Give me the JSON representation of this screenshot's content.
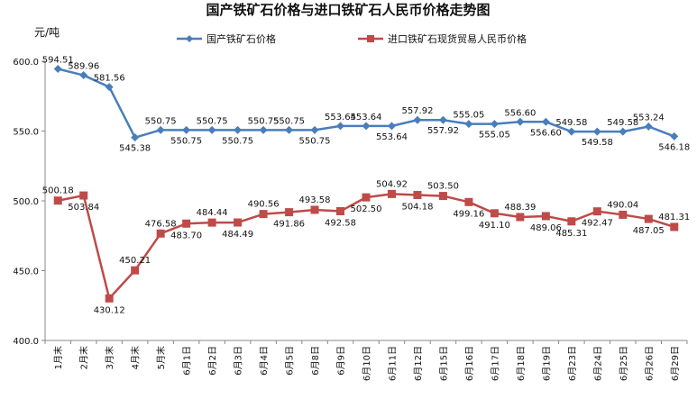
{
  "chart_data": {
    "type": "line",
    "title": "国产铁矿石价格与进口铁矿石人民币价格走势图",
    "ylabel": "元/吨",
    "ylim": [
      400,
      600
    ],
    "yticks": [
      "400.0",
      "450.0",
      "500.0",
      "550.0",
      "600.0"
    ],
    "grid": false,
    "legend_position": "top",
    "categories": [
      "1月末",
      "2月末",
      "3月末",
      "4月末",
      "5月末",
      "6月1日",
      "6月2日",
      "6月3日",
      "6月4日",
      "6月5日",
      "6月8日",
      "6月9日",
      "6月10日",
      "6月11日",
      "6月12日",
      "6月15日",
      "6月16日",
      "6月17日",
      "6月18日",
      "6月19日",
      "6月23日",
      "6月24日",
      "6月25日",
      "6月26日",
      "6月29日"
    ],
    "series": [
      {
        "name": "国产铁矿石价格",
        "color": "#4a7ebb",
        "marker": "diamond",
        "values": [
          594.51,
          589.96,
          581.56,
          545.38,
          550.75,
          550.75,
          550.75,
          550.75,
          550.75,
          550.75,
          550.75,
          553.64,
          553.64,
          553.64,
          557.92,
          557.92,
          555.05,
          555.05,
          556.6,
          556.6,
          549.58,
          549.58,
          549.58,
          553.24,
          546.18
        ],
        "labels": [
          "594.51",
          "589.96",
          "581.56",
          "545.38",
          "550.75",
          "550.75",
          "550.75",
          "550.75",
          "550.75",
          "550.75",
          "550.75",
          "553.64",
          "553.64",
          "553.64",
          "557.92",
          "557.92",
          "555.05",
          "555.05",
          "556.60",
          "556.60",
          "549.58",
          "549.58",
          "549.58",
          "553.24",
          "546.18"
        ]
      },
      {
        "name": "进口铁矿石现货贸易人民币价格",
        "color": "#be4b48",
        "marker": "square",
        "values": [
          500.18,
          503.84,
          430.12,
          450.21,
          476.58,
          483.7,
          484.44,
          484.49,
          490.56,
          491.86,
          493.58,
          492.58,
          502.5,
          504.92,
          504.18,
          503.5,
          499.16,
          491.1,
          488.39,
          489.06,
          485.31,
          492.47,
          490.04,
          487.05,
          481.31
        ],
        "labels": [
          "500.18",
          "503.84",
          "430.12",
          "450.21",
          "476.58",
          "483.70",
          "484.44",
          "484.49",
          "490.56",
          "491.86",
          "493.58",
          "492.58",
          "502.50",
          "504.92",
          "504.18",
          "503.50",
          "499.16",
          "491.10",
          "488.39",
          "489.06",
          "485.31",
          "492.47",
          "490.04",
          "487.05",
          "481.31"
        ]
      }
    ]
  }
}
